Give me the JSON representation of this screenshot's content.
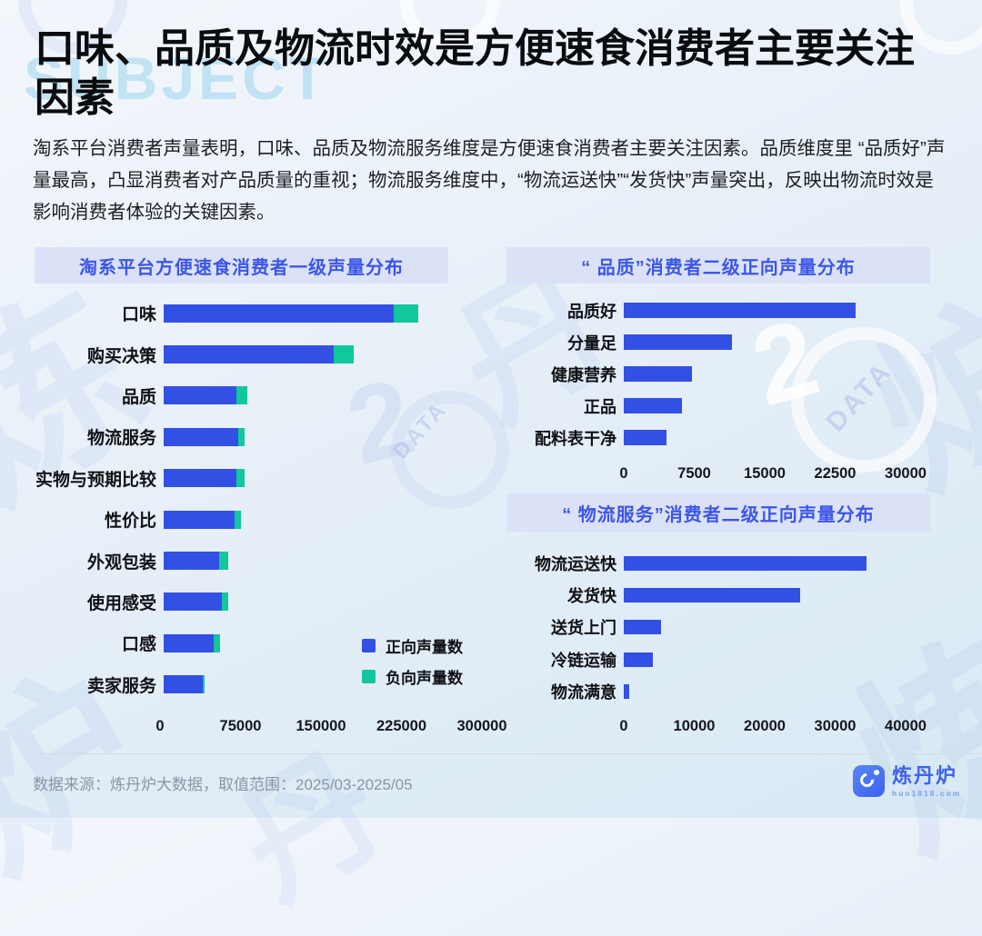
{
  "title": {
    "line1": "口味、品质及物流时效是方便速食消费者主要关注",
    "line2": "因素"
  },
  "intro": "淘系平台消费者声量表明，口味、品质及物流服务维度是方便速食消费者主要关注因素。品质维度里 “品质好”声量最高，凸显消费者对产品质量的重视；物流服务维度中，“物流运送快”“发货快”声量突出，反映出物流时效是影响消费者体验的关键因素。",
  "colors": {
    "positive": "#3350e4",
    "negative": "#12c79e",
    "band_bg": "#dbe2f8",
    "band_text": "#3c56e9"
  },
  "chart_data": [
    {
      "type": "bar",
      "orientation": "horizontal",
      "stacked": true,
      "title": "淘系平台方便速食消费者一级声量分布",
      "categories": [
        "口味",
        "购买决策",
        "品质",
        "物流服务",
        "实物与预期比较",
        "性价比",
        "外观包装",
        "使用感受",
        "口感",
        "卖家服务"
      ],
      "series": [
        {
          "name": "正向声量数",
          "values": [
            214000,
            158500,
            67500,
            69500,
            67500,
            66000,
            51500,
            54500,
            47000,
            36500
          ]
        },
        {
          "name": "负向声量数",
          "values": [
            23000,
            19000,
            10500,
            6000,
            8000,
            6000,
            9000,
            6000,
            5500,
            1500
          ]
        }
      ],
      "xlim": [
        0,
        300000
      ],
      "xticks": [
        0,
        75000,
        150000,
        225000,
        300000
      ],
      "legend_position": "right-middle",
      "grid": false
    },
    {
      "type": "bar",
      "orientation": "horizontal",
      "title": "“ 品质”消费者二级正向声量分布",
      "categories": [
        "品质好",
        "分量足",
        "健康营养",
        "正品",
        "配料表干净"
      ],
      "values": [
        24700,
        11500,
        7300,
        6200,
        4500
      ],
      "xlim": [
        0,
        30000
      ],
      "xticks": [
        0,
        7500,
        15000,
        22500,
        30000
      ],
      "grid": false
    },
    {
      "type": "bar",
      "orientation": "horizontal",
      "title": "“ 物流服务”消费者二级正向声量分布",
      "categories": [
        "物流运送快",
        "发货快",
        "送货上门",
        "冷链运输",
        "物流满意"
      ],
      "values": [
        34500,
        25000,
        5300,
        4100,
        800
      ],
      "xlim": [
        0,
        40000
      ],
      "xticks": [
        0,
        10000,
        20000,
        30000,
        40000
      ],
      "grid": false
    }
  ],
  "footer": {
    "source": "数据来源：炼丹炉大数据，取值范围：2025/03-2025/05",
    "logo_name": "炼丹炉",
    "logo_sub": "huo1818.com"
  },
  "watermarks": {
    "subject": "SUBJECT",
    "badge": "DATA",
    "glyph1": "炼",
    "glyph2": "丹",
    "glyph3": "炉"
  }
}
